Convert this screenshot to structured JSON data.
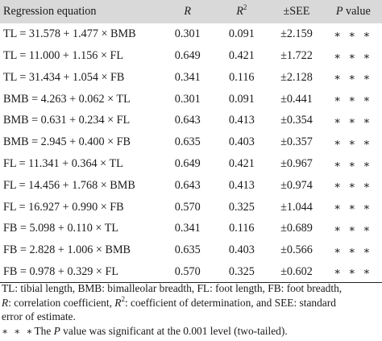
{
  "table": {
    "headers": {
      "equation": "Regression equation",
      "r": "R",
      "r2_base": "R",
      "r2_sup": "2",
      "see": "±SEE",
      "p_italic": "P",
      "p_text": " value"
    },
    "rows": [
      {
        "equation": "TL = 31.578 + 1.477 × BMB",
        "r": "0.301",
        "r2": "0.091",
        "see": "±2.159",
        "p": "∗ ∗ ∗"
      },
      {
        "equation": "TL = 11.000 + 1.156 × FL",
        "r": "0.649",
        "r2": "0.421",
        "see": "±1.722",
        "p": "∗ ∗ ∗"
      },
      {
        "equation": "TL = 31.434 + 1.054 × FB",
        "r": "0.341",
        "r2": "0.116",
        "see": "±2.128",
        "p": "∗ ∗ ∗"
      },
      {
        "equation": "BMB = 4.263 + 0.062 × TL",
        "r": "0.301",
        "r2": "0.091",
        "see": "±0.441",
        "p": "∗ ∗ ∗"
      },
      {
        "equation": "BMB = 0.631 + 0.234 × FL",
        "r": "0.643",
        "r2": "0.413",
        "see": "±0.354",
        "p": "∗ ∗ ∗"
      },
      {
        "equation": "BMB = 2.945 + 0.400 × FB",
        "r": "0.635",
        "r2": "0.403",
        "see": "±0.357",
        "p": "∗ ∗ ∗"
      },
      {
        "equation": "FL = 11.341 + 0.364 × TL",
        "r": "0.649",
        "r2": "0.421",
        "see": "±0.967",
        "p": "∗ ∗ ∗"
      },
      {
        "equation": "FL = 14.456 + 1.768 × BMB",
        "r": "0.643",
        "r2": "0.413",
        "see": "±0.974",
        "p": "∗ ∗ ∗"
      },
      {
        "equation": "FL = 16.927 + 0.990 × FB",
        "r": "0.570",
        "r2": "0.325",
        "see": "±1.044",
        "p": "∗ ∗ ∗"
      },
      {
        "equation": "FB = 5.098 + 0.110 × TL",
        "r": "0.341",
        "r2": "0.116",
        "see": "±0.689",
        "p": "∗ ∗ ∗"
      },
      {
        "equation": "FB = 2.828 + 1.006 × BMB",
        "r": "0.635",
        "r2": "0.403",
        "see": "±0.566",
        "p": "∗ ∗ ∗"
      },
      {
        "equation": "FB = 0.978 + 0.329 × FL",
        "r": "0.570",
        "r2": "0.325",
        "see": "±0.602",
        "p": "∗ ∗ ∗"
      }
    ]
  },
  "notes": {
    "line1": "TL: tibial length, BMB: bimalleolar breadth, FL: foot length, FB: foot breadth,",
    "line2_r": "R",
    "line2_a": ": correlation coefficient, ",
    "line2_r2": "R",
    "line2_sup": "2",
    "line2_b": ": coefficient of determination, and SEE: standard",
    "line3": "error of estimate.",
    "line4_stars": "∗ ∗ ∗",
    "line4_a": "The ",
    "line4_p": "P",
    "line4_b": " value was significant at the 0.001 level (two-tailed)."
  }
}
